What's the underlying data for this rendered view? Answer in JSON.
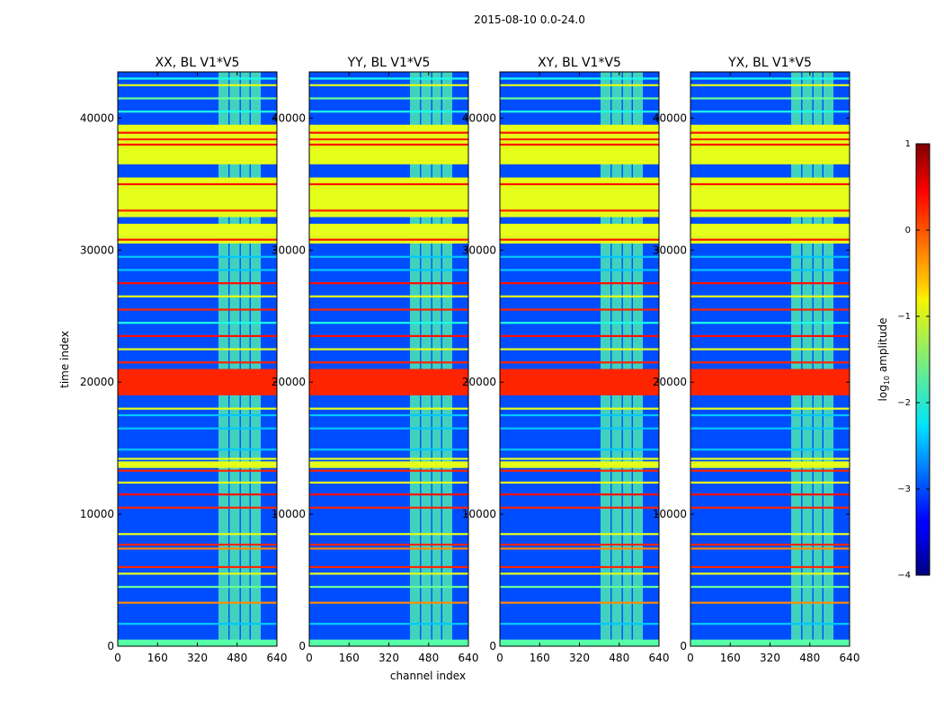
{
  "chart_data": {
    "type": "heatmap",
    "suptitle": "2015-08-10 0.0-24.0",
    "xlabel": "channel index",
    "ylabel": "time index",
    "colorbar_label": "log10 amplitude",
    "colorbar_label_base": "log",
    "colorbar_label_sub": "10",
    "colorbar_label_rest": " amplitude",
    "colorbar_range": [
      -4,
      1
    ],
    "colorbar_ticks": [
      "1",
      "0",
      "−1",
      "−2",
      "−3",
      "−4"
    ],
    "colorbar_tick_values": [
      1,
      0,
      -1,
      -2,
      -3,
      -4
    ],
    "xlim": [
      0,
      640
    ],
    "ylim": [
      0,
      43500
    ],
    "xticks": [
      0,
      160,
      320,
      480,
      640
    ],
    "yticks": [
      0,
      10000,
      20000,
      30000,
      40000
    ],
    "panels": [
      {
        "title": "XX, BL V1*V5",
        "show_ylabel": true
      },
      {
        "title": "YY, BL V1*V5",
        "show_xlabel": true
      },
      {
        "title": "XY, BL V1*V5"
      },
      {
        "title": "YX, BL V1*V5"
      }
    ],
    "background_level": -3.0,
    "bright_channel_bands": [
      [
        405,
        445
      ],
      [
        450,
        490
      ],
      [
        495,
        530
      ],
      [
        535,
        575
      ]
    ],
    "bright_channel_level": -1.7,
    "time_blocks": [
      {
        "t": [
          0,
          500
        ],
        "level": -1.7
      },
      {
        "t": [
          13500,
          14000
        ],
        "level": -1.0
      },
      {
        "t": [
          19000,
          21000
        ],
        "level": 0.2
      },
      {
        "t": [
          30500,
          31000
        ],
        "level": -1.0
      },
      {
        "t": [
          31000,
          32000
        ],
        "level": -1.0
      },
      {
        "t": [
          32500,
          35500
        ],
        "level": -1.0
      },
      {
        "t": [
          36500,
          39500
        ],
        "level": -1.0
      }
    ],
    "horizontal_lines": [
      {
        "t": 1700,
        "level": -2.4
      },
      {
        "t": 3300,
        "level": -0.3
      },
      {
        "t": 4500,
        "level": -1.6
      },
      {
        "t": 5500,
        "level": -1.0
      },
      {
        "t": 6000,
        "level": 0.2
      },
      {
        "t": 7400,
        "level": -0.3
      },
      {
        "t": 7700,
        "level": 0.2
      },
      {
        "t": 8500,
        "level": -1.0
      },
      {
        "t": 10500,
        "level": 0.2
      },
      {
        "t": 11500,
        "level": 0.3
      },
      {
        "t": 12400,
        "level": -1.0
      },
      {
        "t": 13300,
        "level": 0.2
      },
      {
        "t": 14200,
        "level": -1.0
      },
      {
        "t": 14900,
        "level": -2.4
      },
      {
        "t": 16500,
        "level": -2.4
      },
      {
        "t": 17500,
        "level": -2.4
      },
      {
        "t": 18000,
        "level": -1.0
      },
      {
        "t": 20500,
        "level": 0.2
      },
      {
        "t": 21500,
        "level": 0.2
      },
      {
        "t": 22500,
        "level": -1.0
      },
      {
        "t": 23500,
        "level": 0.3
      },
      {
        "t": 24500,
        "level": -2.0
      },
      {
        "t": 25500,
        "level": 0.2
      },
      {
        "t": 26500,
        "level": -1.0
      },
      {
        "t": 27500,
        "level": 0.3
      },
      {
        "t": 28500,
        "level": -2.4
      },
      {
        "t": 29500,
        "level": -2.4
      },
      {
        "t": 30800,
        "level": 0.3
      },
      {
        "t": 33000,
        "level": 0.2
      },
      {
        "t": 35000,
        "level": 0.3
      },
      {
        "t": 38000,
        "level": 0.3
      },
      {
        "t": 38400,
        "level": 0.2
      },
      {
        "t": 38900,
        "level": 0.3
      },
      {
        "t": 40500,
        "level": -2.0
      },
      {
        "t": 41500,
        "level": -1.6
      },
      {
        "t": 42500,
        "level": -1.0
      },
      {
        "t": 43000,
        "level": -2.0
      }
    ]
  }
}
